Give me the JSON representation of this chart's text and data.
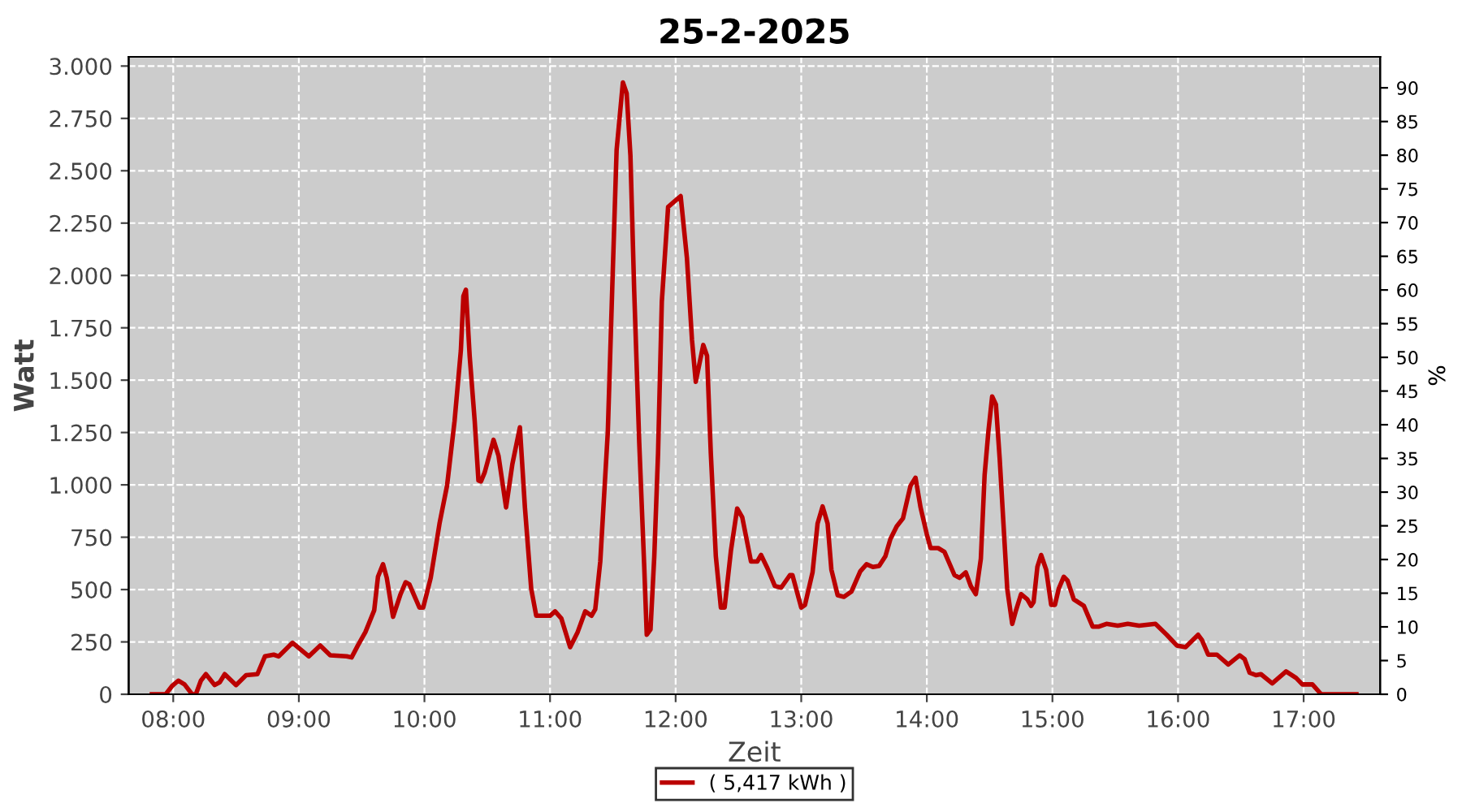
{
  "chart_data": {
    "type": "line",
    "title": "25-2-2025",
    "xlabel": "Zeit",
    "ylabel": "Watt",
    "y2label": "%",
    "xlim": [
      7.645,
      17.609
    ],
    "xticks": [
      {
        "value": 8,
        "label": "08:00"
      },
      {
        "value": 9,
        "label": "09:00"
      },
      {
        "value": 10,
        "label": "10:00"
      },
      {
        "value": 11,
        "label": "11:00"
      },
      {
        "value": 12,
        "label": "12:00"
      },
      {
        "value": 13,
        "label": "13:00"
      },
      {
        "value": 14,
        "label": "14:00"
      },
      {
        "value": 15,
        "label": "15:00"
      },
      {
        "value": 16,
        "label": "16:00"
      },
      {
        "value": 17,
        "label": "17:00"
      }
    ],
    "ylim": [
      0,
      3044
    ],
    "yticks": [
      0,
      250,
      500,
      750,
      {
        "value": 1000,
        "label": "1.000"
      },
      {
        "value": 1250,
        "label": "1.250"
      },
      {
        "value": 1500,
        "label": "1.500"
      },
      {
        "value": 1750,
        "label": "1.750"
      },
      {
        "value": 2000,
        "label": "2.000"
      },
      {
        "value": 2250,
        "label": "2.250"
      },
      {
        "value": 2500,
        "label": "2.500"
      },
      {
        "value": 2750,
        "label": "2.750"
      },
      {
        "value": 3000,
        "label": "3.000"
      }
    ],
    "y2lim": [
      0,
      94.6
    ],
    "y2ticks": [
      0,
      5,
      10,
      15,
      20,
      25,
      30,
      35,
      40,
      45,
      50,
      55,
      60,
      65,
      70,
      75,
      80,
      85,
      90
    ],
    "grid": true,
    "legend": "bottom",
    "marker": "none",
    "line_style": "solid",
    "series": [
      {
        "name": "( 5,417 kWh )",
        "color": "#bb0000",
        "x": [
          7.83,
          7.94,
          7.99,
          8.04,
          8.09,
          8.15,
          8.18,
          8.22,
          8.26,
          8.33,
          8.37,
          8.41,
          8.5,
          8.58,
          8.67,
          8.73,
          8.8,
          8.84,
          8.95,
          9.08,
          9.17,
          9.25,
          9.38,
          9.42,
          9.47,
          9.53,
          9.6,
          9.63,
          9.67,
          9.7,
          9.75,
          9.81,
          9.85,
          9.88,
          9.96,
          9.99,
          10.05,
          10.12,
          10.18,
          10.24,
          10.29,
          10.31,
          10.33,
          10.36,
          10.4,
          10.43,
          10.45,
          10.48,
          10.55,
          10.59,
          10.65,
          10.7,
          10.76,
          10.8,
          10.85,
          10.89,
          11.0,
          11.04,
          11.09,
          11.16,
          11.22,
          11.28,
          11.33,
          11.36,
          11.4,
          11.46,
          11.5,
          11.53,
          11.58,
          11.61,
          11.64,
          11.67,
          11.71,
          11.75,
          11.77,
          11.8,
          11.83,
          11.86,
          11.89,
          11.94,
          11.99,
          12.04,
          12.09,
          12.13,
          12.16,
          12.22,
          12.25,
          12.28,
          12.32,
          12.36,
          12.39,
          12.44,
          12.49,
          12.53,
          12.6,
          12.65,
          12.68,
          12.73,
          12.79,
          12.84,
          12.91,
          12.93,
          13.0,
          13.03,
          13.09,
          13.13,
          13.17,
          13.21,
          13.24,
          13.29,
          13.34,
          13.4,
          13.47,
          13.52,
          13.57,
          13.62,
          13.67,
          13.71,
          13.76,
          13.81,
          13.87,
          13.91,
          13.95,
          14.0,
          14.03,
          14.09,
          14.14,
          14.22,
          14.26,
          14.31,
          14.35,
          14.39,
          14.43,
          14.46,
          14.49,
          14.52,
          14.55,
          14.58,
          14.61,
          14.64,
          14.68,
          14.71,
          14.75,
          14.8,
          14.83,
          14.85,
          14.88,
          14.91,
          14.95,
          14.99,
          15.02,
          15.05,
          15.09,
          15.12,
          15.17,
          15.25,
          15.32,
          15.37,
          15.43,
          15.52,
          15.6,
          15.69,
          15.82,
          15.91,
          15.99,
          16.06,
          16.16,
          16.19,
          16.24,
          16.31,
          16.4,
          16.49,
          16.53,
          16.57,
          16.62,
          16.66,
          16.75,
          16.86,
          16.94,
          16.99,
          17.07,
          17.14,
          17.42
        ],
        "values": [
          0,
          0,
          39,
          65,
          47,
          0,
          0,
          65,
          96,
          44,
          57,
          96,
          44,
          91,
          96,
          181,
          189,
          181,
          246,
          181,
          233,
          186,
          181,
          176,
          233,
          297,
          401,
          561,
          621,
          556,
          370,
          478,
          535,
          525,
          414,
          414,
          556,
          815,
          996,
          1306,
          1642,
          1901,
          1932,
          1616,
          1306,
          1021,
          1016,
          1060,
          1215,
          1138,
          892,
          1099,
          1275,
          892,
          504,
          375,
          375,
          396,
          362,
          225,
          297,
          396,
          375,
          406,
          634,
          1254,
          2030,
          2599,
          2922,
          2870,
          2573,
          1927,
          1203,
          608,
          284,
          310,
          659,
          1151,
          1875,
          2327,
          2353,
          2379,
          2082,
          1694,
          1492,
          1668,
          1616,
          1151,
          659,
          414,
          414,
          685,
          887,
          846,
          634,
          634,
          665,
          603,
          517,
          509,
          569,
          569,
          414,
          427,
          582,
          815,
          897,
          815,
          595,
          473,
          465,
          491,
          587,
          621,
          608,
          613,
          659,
          742,
          802,
          840,
          996,
          1034,
          892,
          763,
          698,
          698,
          680,
          569,
          556,
          582,
          517,
          478,
          647,
          1047,
          1254,
          1422,
          1384,
          1125,
          815,
          504,
          336,
          401,
          478,
          453,
          422,
          440,
          608,
          665,
          595,
          427,
          427,
          504,
          561,
          543,
          453,
          422,
          323,
          323,
          336,
          328,
          336,
          328,
          336,
          284,
          233,
          225,
          284,
          259,
          189,
          189,
          142,
          186,
          168,
          103,
          91,
          96,
          52,
          109,
          78,
          47,
          47,
          0,
          0
        ]
      }
    ]
  }
}
